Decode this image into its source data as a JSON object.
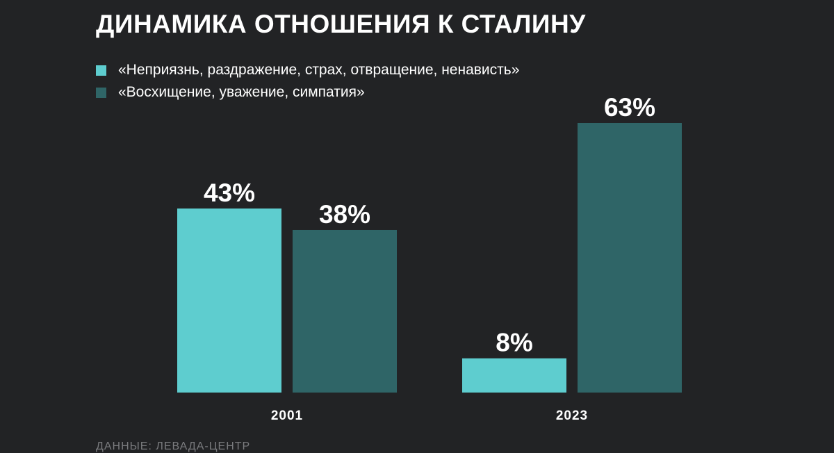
{
  "chart_data": {
    "type": "bar",
    "title": "ДИНАМИКА ОТНОШЕНИЯ К СТАЛИНУ",
    "categories": [
      "2001",
      "2023"
    ],
    "series": [
      {
        "name": "«Неприязнь, раздражение, страх, отвращение, ненависть»",
        "color": "#5ecdcf",
        "values": [
          43,
          8
        ],
        "labels": [
          "43%",
          "8%"
        ]
      },
      {
        "name": "«Восхищение, уважение, симпатия»",
        "color": "#2f6567",
        "values": [
          38,
          63
        ],
        "labels": [
          "38%",
          "63%"
        ]
      }
    ],
    "ylim": [
      0,
      63
    ],
    "grid": false,
    "legend": "top-left"
  },
  "source": "ДАННЫЕ: ЛЕВАДА-ЦЕНТР",
  "colors": {
    "background": "#222325",
    "text": "#ffffff",
    "muted": "#7a7b7e"
  }
}
